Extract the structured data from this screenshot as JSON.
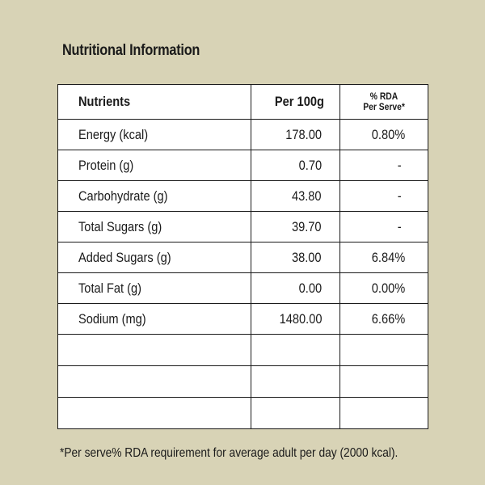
{
  "title": "Nutritional Information",
  "table": {
    "headers": {
      "nutrients": "Nutrients",
      "per100g": "Per 100g",
      "rda_line1": "% RDA",
      "rda_line2": "Per Serve*"
    },
    "rows": [
      {
        "name": "Energy (kcal)",
        "per100g": "178.00",
        "rda": "0.80%"
      },
      {
        "name": "Protein (g)",
        "per100g": "0.70",
        "rda": "-"
      },
      {
        "name": "Carbohydrate (g)",
        "per100g": "43.80",
        "rda": "-"
      },
      {
        "name": "Total Sugars (g)",
        "per100g": "39.70",
        "rda": "-"
      },
      {
        "name": "Added Sugars (g)",
        "per100g": "38.00",
        "rda": "6.84%"
      },
      {
        "name": "Total Fat (g)",
        "per100g": "0.00",
        "rda": "0.00%"
      },
      {
        "name": "Sodium (mg)",
        "per100g": "1480.00",
        "rda": "6.66%"
      }
    ]
  },
  "footnote": "*Per serve% RDA requirement for average adult per day (2000 kcal)."
}
